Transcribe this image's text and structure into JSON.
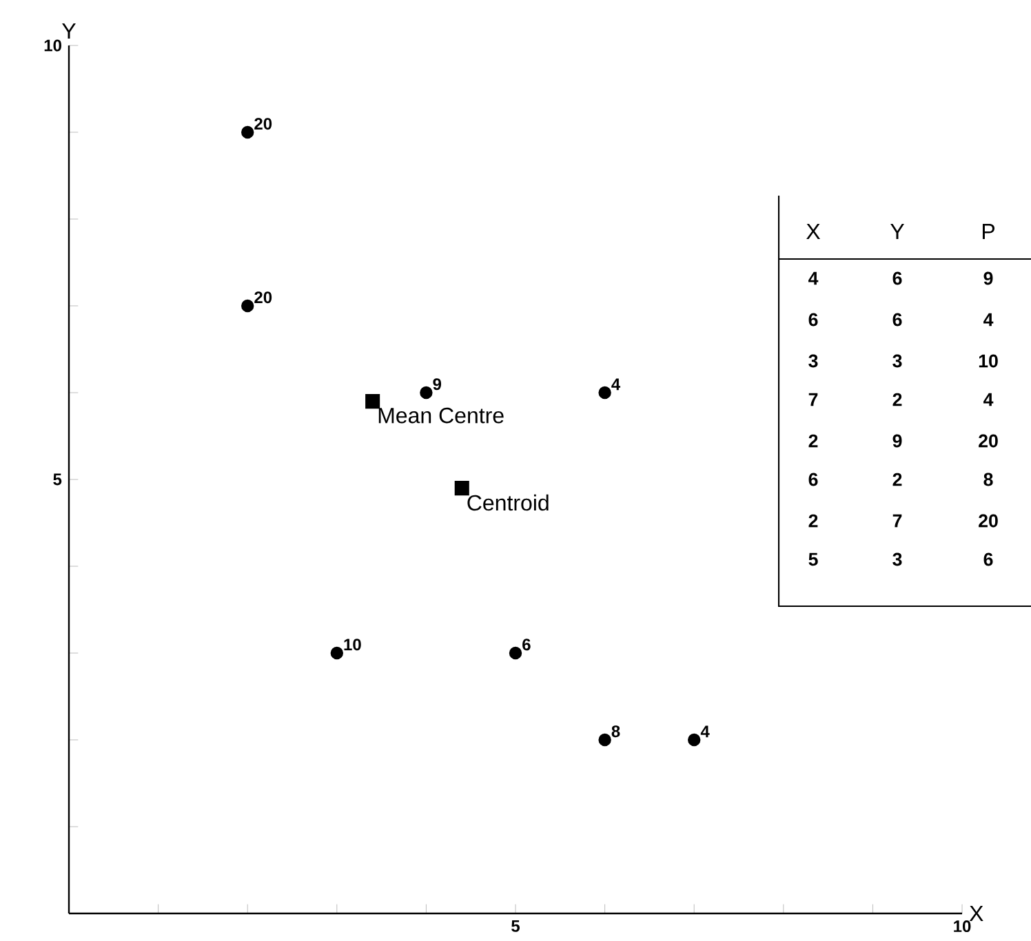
{
  "chart_data": {
    "type": "scatter",
    "xlabel": "X",
    "ylabel": "Y",
    "xlim": [
      0,
      10
    ],
    "ylim": [
      0,
      10
    ],
    "xticks": [
      {
        "value": 1,
        "label": null
      },
      {
        "value": 2,
        "label": null
      },
      {
        "value": 3,
        "label": null
      },
      {
        "value": 4,
        "label": null
      },
      5,
      {
        "value": 6,
        "label": null
      },
      {
        "value": 7,
        "label": null
      },
      {
        "value": 8,
        "label": null
      },
      {
        "value": 9,
        "label": null
      },
      10
    ],
    "yticks": [
      {
        "value": 1,
        "label": null
      },
      {
        "value": 2,
        "label": null
      },
      {
        "value": 3,
        "label": null
      },
      {
        "value": 4,
        "label": null
      },
      5,
      {
        "value": 6,
        "label": null
      },
      {
        "value": 7,
        "label": null
      },
      {
        "value": 8,
        "label": null
      },
      {
        "value": 9,
        "label": null
      },
      10
    ],
    "series": [
      {
        "color": "#000000",
        "marker": "circle",
        "x": [
          4,
          6,
          3,
          7,
          2,
          6,
          2,
          5
        ],
        "values": [
          6,
          6,
          3,
          2,
          9,
          2,
          7,
          3
        ]
      },
      {
        "name": "Mean Centre",
        "color": "#000000",
        "marker": "square",
        "x": [
          3.4
        ],
        "values": [
          5.9
        ]
      },
      {
        "name": "Centroid",
        "color": "#000000",
        "marker": "square",
        "x": [
          4.4
        ],
        "values": [
          4.9
        ]
      }
    ],
    "annotations": [
      "X",
      "Y",
      "P",
      "4",
      "6",
      "9",
      "6",
      "6",
      "4",
      "3",
      "3",
      "10",
      "7",
      "2",
      "4",
      "2",
      "9",
      "20",
      "6",
      "2",
      "8",
      "2",
      "7",
      "20",
      "5",
      "3",
      "6",
      {
        "text": "9",
        "x": 4,
        "y": 6
      },
      {
        "text": "4",
        "x": 6,
        "y": 6
      },
      {
        "text": "10",
        "x": 3,
        "y": 3
      },
      {
        "text": "4",
        "x": 7,
        "y": 2
      },
      {
        "text": "20",
        "x": 2,
        "y": 9
      },
      {
        "text": "8",
        "x": 6,
        "y": 2
      },
      {
        "text": "20",
        "x": 2,
        "y": 7
      },
      {
        "text": "6",
        "x": 5,
        "y": 3
      }
    ]
  }
}
